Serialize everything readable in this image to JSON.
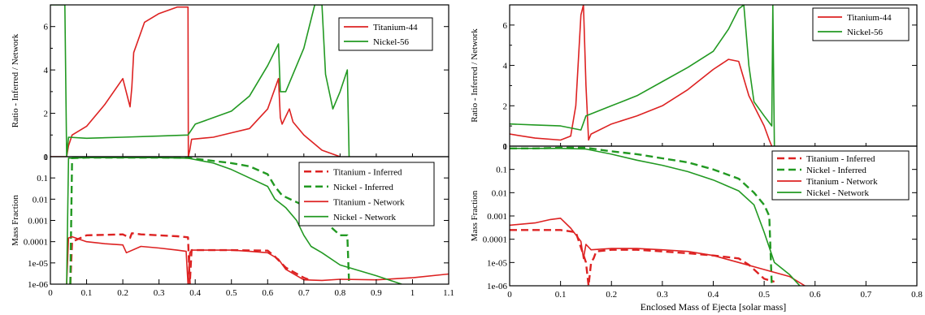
{
  "chart_data": [
    {
      "type": "line",
      "panel": "left-top",
      "title": "",
      "xlabel": "",
      "ylabel": "Ratio - Inferred / Network",
      "xlim": [
        0,
        1.1
      ],
      "ylim": [
        0,
        7
      ],
      "yscale": "linear",
      "xticks": [],
      "yticks": [
        "0",
        "2",
        "4",
        "6"
      ],
      "legend_position": "top-right",
      "series": [
        {
          "name": "Titanium-44",
          "color": "#dd2222",
          "dash": false,
          "x": [
            0.0,
            0.045,
            0.05,
            0.06,
            0.1,
            0.15,
            0.2,
            0.22,
            0.225,
            0.23,
            0.26,
            0.3,
            0.35,
            0.38,
            0.381,
            0.385,
            0.39,
            0.45,
            0.5,
            0.55,
            0.6,
            0.63,
            0.635,
            0.64,
            0.66,
            0.67,
            0.7,
            0.75,
            0.8
          ],
          "y": [
            0,
            0,
            0.5,
            1.0,
            1.4,
            2.4,
            3.6,
            2.3,
            3.2,
            4.8,
            6.2,
            6.6,
            6.9,
            6.9,
            0,
            0.3,
            0.8,
            0.9,
            1.1,
            1.3,
            2.2,
            3.6,
            1.8,
            1.5,
            2.2,
            1.6,
            1.0,
            0.3,
            0
          ]
        },
        {
          "name": "Nickel-56",
          "color": "#229922",
          "dash": false,
          "x": [
            0.0,
            0.04,
            0.045,
            0.05,
            0.1,
            0.2,
            0.3,
            0.38,
            0.4,
            0.45,
            0.5,
            0.55,
            0.6,
            0.63,
            0.635,
            0.65,
            0.7,
            0.73,
            0.75,
            0.76,
            0.78,
            0.8,
            0.82,
            0.825
          ],
          "y": [
            7,
            7,
            0,
            0.9,
            0.85,
            0.9,
            0.95,
            1.0,
            1.5,
            1.8,
            2.1,
            2.8,
            4.2,
            5.2,
            3.0,
            3.0,
            5.0,
            7.0,
            7.0,
            3.8,
            2.2,
            3.0,
            4.0,
            0
          ]
        }
      ]
    },
    {
      "type": "line",
      "panel": "left-bottom",
      "title": "",
      "xlabel": "",
      "ylabel": "Mass Fraction",
      "xlim": [
        0,
        1.1
      ],
      "ylim": [
        1e-06,
        1
      ],
      "yscale": "log",
      "xticks": [
        "0",
        "0.1",
        "0.2",
        "0.3",
        "0.4",
        "0.5",
        "0.6",
        "0.7",
        "0.8",
        "0.9",
        "1",
        "1.1"
      ],
      "yticks": [
        "1",
        "0.1",
        "0.01",
        "0.001",
        "0.0001",
        "1e-05",
        "1e-06"
      ],
      "legend_position": "top-right",
      "series": [
        {
          "name": "Titanium - Inferred",
          "color": "#dd2222",
          "dash": true,
          "x": [
            0.055,
            0.06,
            0.1,
            0.2,
            0.22,
            0.225,
            0.25,
            0.3,
            0.35,
            0.38,
            0.385,
            0.39,
            0.4,
            0.5,
            0.6,
            0.62,
            0.65,
            0.7,
            0.72
          ],
          "y": [
            1e-06,
            0.0001,
            0.0002,
            0.00022,
            0.00015,
            0.00025,
            0.00022,
            0.0002,
            0.00018,
            0.00016,
            1e-06,
            4e-05,
            4e-05,
            4e-05,
            3.8e-05,
            2e-05,
            6e-06,
            2e-06,
            1.5e-06
          ]
        },
        {
          "name": "Nickel - Inferred",
          "color": "#229922",
          "dash": true,
          "x": [
            0.055,
            0.06,
            0.1,
            0.2,
            0.3,
            0.38,
            0.4,
            0.5,
            0.55,
            0.6,
            0.62,
            0.64,
            0.7,
            0.75,
            0.78,
            0.8,
            0.82,
            0.825
          ],
          "y": [
            1e-06,
            0.85,
            0.9,
            0.9,
            0.9,
            0.88,
            0.8,
            0.5,
            0.35,
            0.15,
            0.04,
            0.015,
            0.005,
            0.0015,
            0.0004,
            0.0002,
            0.0002,
            1e-06
          ]
        },
        {
          "name": "Titanium - Network",
          "color": "#dd2222",
          "dash": false,
          "x": [
            0.045,
            0.05,
            0.06,
            0.1,
            0.15,
            0.2,
            0.21,
            0.25,
            0.3,
            0.35,
            0.375,
            0.38,
            0.385,
            0.39,
            0.45,
            0.5,
            0.55,
            0.6,
            0.63,
            0.65,
            0.7,
            0.75,
            0.8,
            0.9,
            1.0,
            1.1
          ],
          "y": [
            1e-06,
            0.00015,
            0.00017,
            0.0001,
            8e-05,
            7e-05,
            3e-05,
            6e-05,
            5e-05,
            4e-05,
            3.5e-05,
            1e-06,
            3e-05,
            4e-05,
            4e-05,
            4e-05,
            3.5e-05,
            3e-05,
            1.5e-05,
            5e-06,
            1.6e-06,
            1.5e-06,
            1.7e-06,
            1.6e-06,
            2e-06,
            3e-06
          ]
        },
        {
          "name": "Nickel - Network",
          "color": "#229922",
          "dash": false,
          "x": [
            0.045,
            0.05,
            0.1,
            0.2,
            0.3,
            0.38,
            0.45,
            0.5,
            0.55,
            0.6,
            0.62,
            0.65,
            0.68,
            0.7,
            0.72,
            0.75,
            0.8,
            0.9,
            0.97
          ],
          "y": [
            1e-06,
            0.85,
            0.9,
            0.9,
            0.9,
            0.85,
            0.5,
            0.25,
            0.1,
            0.04,
            0.01,
            0.004,
            0.001,
            0.0002,
            6e-05,
            3e-05,
            8e-06,
            2.5e-06,
            1e-06
          ]
        }
      ]
    },
    {
      "type": "line",
      "panel": "right-top",
      "title": "",
      "xlabel": "",
      "ylabel": "Ratio - Inferred / Network",
      "xlim": [
        0,
        0.8
      ],
      "ylim": [
        0,
        7
      ],
      "yscale": "linear",
      "xticks": [],
      "yticks": [
        "0",
        "2",
        "4",
        "6"
      ],
      "legend_position": "top-right",
      "series": [
        {
          "name": "Titanium-44",
          "color": "#dd2222",
          "dash": false,
          "x": [
            0.0,
            0.05,
            0.1,
            0.12,
            0.13,
            0.14,
            0.145,
            0.15,
            0.155,
            0.16,
            0.2,
            0.25,
            0.3,
            0.35,
            0.4,
            0.43,
            0.45,
            0.47,
            0.5,
            0.51,
            0.515
          ],
          "y": [
            0.6,
            0.4,
            0.3,
            0.5,
            2.0,
            6.5,
            7.0,
            3.0,
            0.3,
            0.6,
            1.1,
            1.5,
            2.0,
            2.8,
            3.8,
            4.3,
            4.2,
            2.5,
            1.0,
            0.3,
            0
          ]
        },
        {
          "name": "Nickel-56",
          "color": "#229922",
          "dash": false,
          "x": [
            0.0,
            0.05,
            0.1,
            0.14,
            0.15,
            0.2,
            0.25,
            0.3,
            0.35,
            0.4,
            0.43,
            0.45,
            0.46,
            0.47,
            0.48,
            0.5,
            0.515,
            0.517,
            0.52
          ],
          "y": [
            1.1,
            1.05,
            1.0,
            0.8,
            1.5,
            2.0,
            2.5,
            3.2,
            3.9,
            4.7,
            5.8,
            6.8,
            7.0,
            4.0,
            2.2,
            1.5,
            1.0,
            7.0,
            0
          ]
        }
      ]
    },
    {
      "type": "line",
      "panel": "right-bottom",
      "title": "",
      "xlabel": "Enclosed Mass of Ejecta [solar mass]",
      "ylabel": "Mass Fraction",
      "xlim": [
        0,
        0.8
      ],
      "ylim": [
        1e-06,
        1
      ],
      "yscale": "log",
      "xticks": [
        "0",
        "0.1",
        "0.2",
        "0.3",
        "0.4",
        "0.5",
        "0.6",
        "0.7",
        "0.8"
      ],
      "yticks": [
        "1",
        "0.1",
        "0.01",
        "0.001",
        "0.0001",
        "1e-05",
        "1e-06"
      ],
      "legend_position": "top-right",
      "series": [
        {
          "name": "Titanium - Inferred",
          "color": "#dd2222",
          "dash": true,
          "x": [
            0.0,
            0.05,
            0.1,
            0.13,
            0.15,
            0.155,
            0.16,
            0.165,
            0.17,
            0.2,
            0.25,
            0.3,
            0.35,
            0.4,
            0.45,
            0.47,
            0.5,
            0.52
          ],
          "y": [
            0.00025,
            0.00025,
            0.00025,
            0.0002,
            1e-05,
            1e-06,
            1e-05,
            1.5e-05,
            3e-05,
            3.5e-05,
            3.5e-05,
            3e-05,
            2.5e-05,
            2e-05,
            1.5e-05,
            8e-06,
            2e-06,
            1.5e-06
          ]
        },
        {
          "name": "Nickel - Inferred",
          "color": "#229922",
          "dash": true,
          "x": [
            0.0,
            0.05,
            0.1,
            0.15,
            0.2,
            0.25,
            0.3,
            0.35,
            0.4,
            0.45,
            0.48,
            0.5,
            0.51,
            0.515
          ],
          "y": [
            0.8,
            0.8,
            0.85,
            0.85,
            0.6,
            0.45,
            0.3,
            0.2,
            0.1,
            0.04,
            0.01,
            0.003,
            0.001,
            1e-06
          ]
        },
        {
          "name": "Titanium - Network",
          "color": "#dd2222",
          "dash": false,
          "x": [
            0.0,
            0.05,
            0.08,
            0.1,
            0.12,
            0.14,
            0.145,
            0.15,
            0.16,
            0.2,
            0.25,
            0.3,
            0.35,
            0.4,
            0.45,
            0.5,
            0.55,
            0.58
          ],
          "y": [
            0.0004,
            0.0005,
            0.0007,
            0.0008,
            0.0003,
            8e-05,
            1.5e-05,
            6e-05,
            3.5e-05,
            4e-05,
            4e-05,
            3.5e-05,
            3e-05,
            2e-05,
            1e-05,
            5e-06,
            2.5e-06,
            1e-06
          ]
        },
        {
          "name": "Nickel - Network",
          "color": "#229922",
          "dash": false,
          "x": [
            0.0,
            0.05,
            0.1,
            0.15,
            0.2,
            0.25,
            0.3,
            0.35,
            0.4,
            0.45,
            0.48,
            0.5,
            0.52,
            0.55,
            0.57
          ],
          "y": [
            0.8,
            0.8,
            0.8,
            0.75,
            0.45,
            0.25,
            0.15,
            0.08,
            0.035,
            0.012,
            0.003,
            0.0002,
            1e-05,
            3e-06,
            1e-06
          ]
        }
      ]
    }
  ]
}
